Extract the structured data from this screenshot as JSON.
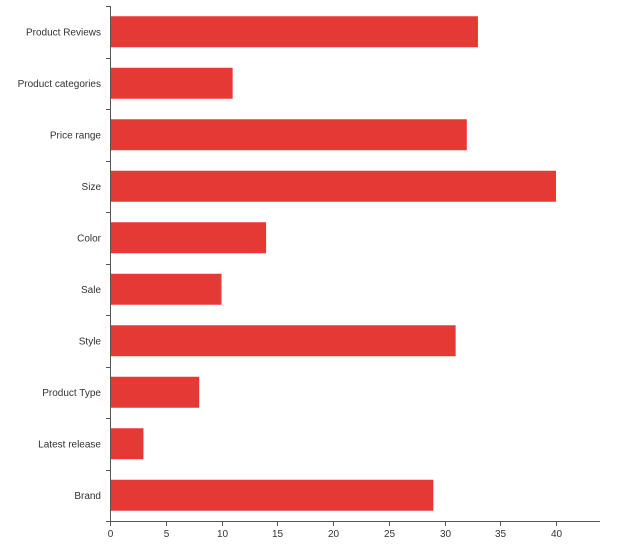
{
  "chart_data": {
    "type": "bar",
    "orientation": "horizontal",
    "categories": [
      "Product Reviews",
      "Product categories",
      "Price range",
      "Size",
      "Color",
      "Sale",
      "Style",
      "Product Type",
      "Latest release",
      "Brand"
    ],
    "values": [
      33,
      11,
      32,
      40,
      14,
      10,
      31,
      8,
      3,
      29
    ],
    "title": "",
    "xlabel": "",
    "ylabel": "",
    "xlim": [
      0,
      44
    ],
    "x_ticks": [
      0,
      5,
      10,
      15,
      20,
      25,
      30,
      35,
      40
    ],
    "x_tick_labels": [
      "0",
      "5",
      "10",
      "15",
      "20",
      "25",
      "30",
      "35",
      "40"
    ],
    "grid": false,
    "bar_color": "#e53935"
  }
}
